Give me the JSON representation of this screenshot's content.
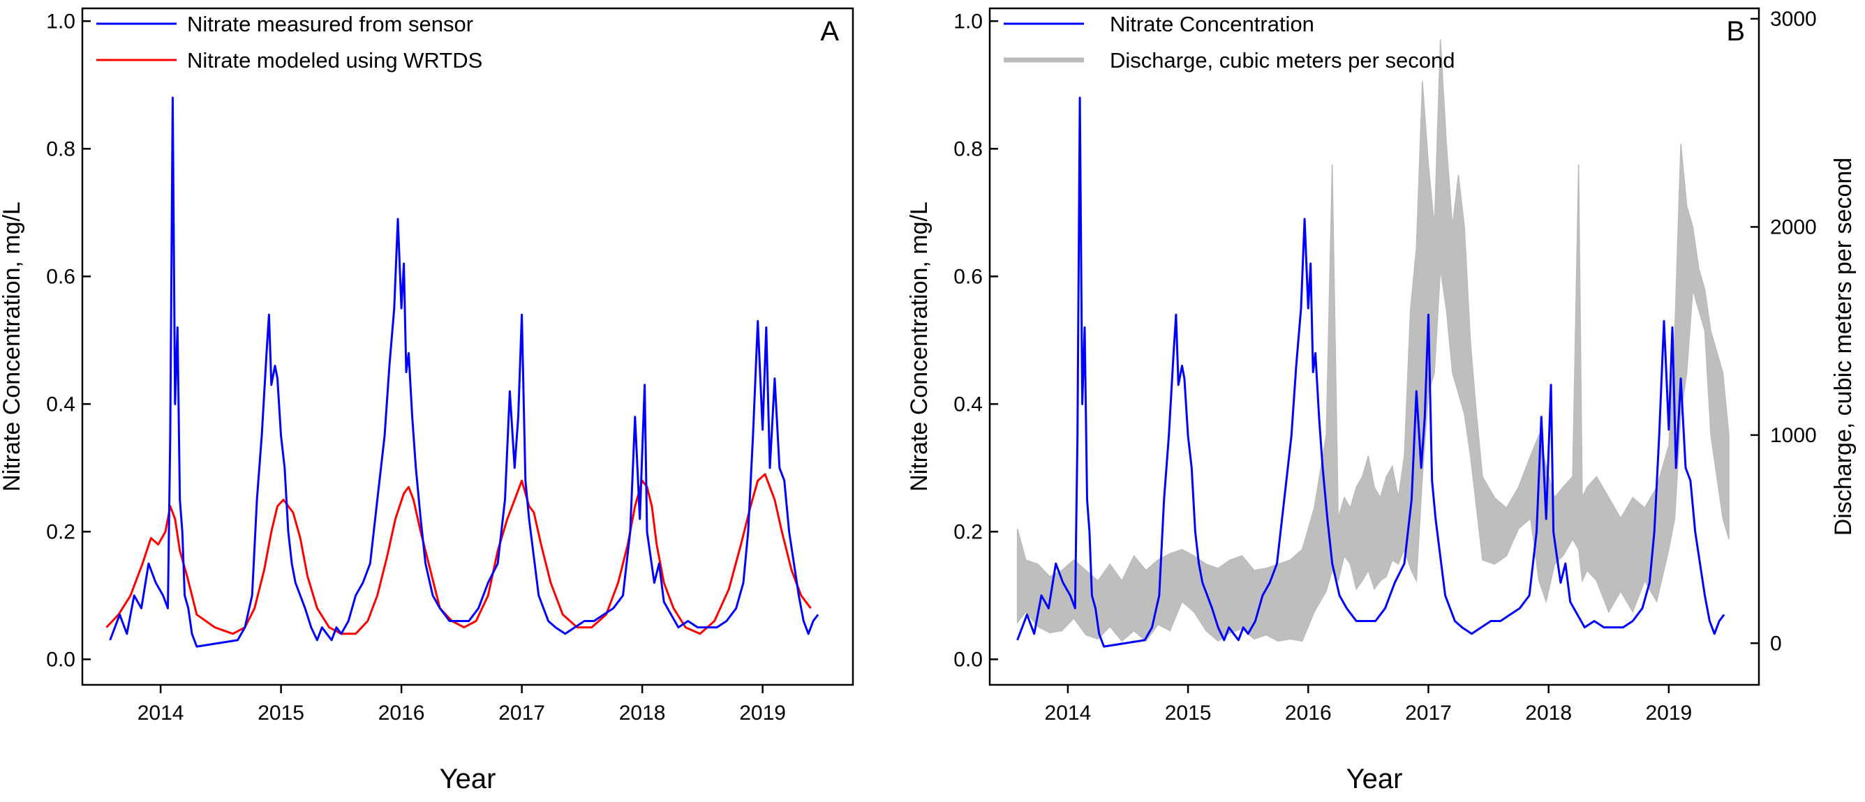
{
  "chart_data": [
    {
      "panel": "A",
      "type": "line",
      "xlabel": "Year",
      "ylabel": "Nitrate Concentration, mg/L",
      "xlim": [
        2013.35,
        2019.75
      ],
      "ylim": [
        -0.04,
        1.02
      ],
      "x_ticks": [
        2014,
        2015,
        2016,
        2017,
        2018,
        2019
      ],
      "x_tick_labels": [
        "2014",
        "2015",
        "2016",
        "2017",
        "2018",
        "2019"
      ],
      "y_ticks": [
        0.0,
        0.2,
        0.4,
        0.6,
        0.8,
        1.0
      ],
      "y_tick_labels": [
        "0.0",
        "0.2",
        "0.4",
        "0.6",
        "0.8",
        "1.0"
      ],
      "legend_position": "top-left",
      "grid": false,
      "series": [
        {
          "name": "Nitrate measured from sensor",
          "color": "#0000ff",
          "x": [
            2013.58,
            2013.62,
            2013.66,
            2013.72,
            2013.78,
            2013.84,
            2013.9,
            2013.96,
            2014.02,
            2014.06,
            2014.08,
            2014.1,
            2014.12,
            2014.14,
            2014.16,
            2014.18,
            2014.2,
            2014.23,
            2014.26,
            2014.3,
            2014.64,
            2014.7,
            2014.76,
            2014.8,
            2014.84,
            2014.88,
            2014.9,
            2014.92,
            2014.95,
            2014.97,
            2015.0,
            2015.03,
            2015.06,
            2015.09,
            2015.12,
            2015.16,
            2015.2,
            2015.25,
            2015.3,
            2015.34,
            2015.38,
            2015.42,
            2015.46,
            2015.5,
            2015.56,
            2015.62,
            2015.68,
            2015.74,
            2015.8,
            2015.86,
            2015.9,
            2015.94,
            2015.97,
            2016.0,
            2016.02,
            2016.04,
            2016.06,
            2016.09,
            2016.12,
            2016.16,
            2016.2,
            2016.26,
            2016.32,
            2016.4,
            2016.48,
            2016.56,
            2016.64,
            2016.72,
            2016.8,
            2016.86,
            2016.9,
            2016.94,
            2016.97,
            2017.0,
            2017.03,
            2017.06,
            2017.1,
            2017.14,
            2017.18,
            2017.22,
            2017.28,
            2017.36,
            2017.44,
            2017.52,
            2017.6,
            2017.68,
            2017.76,
            2017.84,
            2017.9,
            2017.94,
            2017.98,
            2018.02,
            2018.04,
            2018.07,
            2018.1,
            2018.14,
            2018.18,
            2018.24,
            2018.3,
            2018.38,
            2018.46,
            2018.54,
            2018.62,
            2018.7,
            2018.78,
            2018.84,
            2018.88,
            2018.92,
            2018.96,
            2019.0,
            2019.03,
            2019.06,
            2019.1,
            2019.14,
            2019.18,
            2019.22,
            2019.26,
            2019.3,
            2019.34,
            2019.38,
            2019.42,
            2019.46
          ],
          "values": [
            0.03,
            0.05,
            0.07,
            0.04,
            0.1,
            0.08,
            0.15,
            0.12,
            0.1,
            0.08,
            0.35,
            0.88,
            0.4,
            0.52,
            0.25,
            0.2,
            0.1,
            0.08,
            0.04,
            0.02,
            0.03,
            0.05,
            0.1,
            0.25,
            0.35,
            0.48,
            0.54,
            0.43,
            0.46,
            0.44,
            0.35,
            0.3,
            0.2,
            0.15,
            0.12,
            0.1,
            0.08,
            0.05,
            0.03,
            0.05,
            0.04,
            0.03,
            0.05,
            0.04,
            0.06,
            0.1,
            0.12,
            0.15,
            0.25,
            0.35,
            0.46,
            0.55,
            0.69,
            0.55,
            0.62,
            0.45,
            0.48,
            0.38,
            0.3,
            0.22,
            0.15,
            0.1,
            0.08,
            0.06,
            0.06,
            0.06,
            0.08,
            0.12,
            0.15,
            0.25,
            0.42,
            0.3,
            0.38,
            0.54,
            0.28,
            0.22,
            0.16,
            0.1,
            0.08,
            0.06,
            0.05,
            0.04,
            0.05,
            0.06,
            0.06,
            0.07,
            0.08,
            0.1,
            0.2,
            0.38,
            0.22,
            0.43,
            0.2,
            0.16,
            0.12,
            0.15,
            0.09,
            0.07,
            0.05,
            0.06,
            0.05,
            0.05,
            0.05,
            0.06,
            0.08,
            0.12,
            0.2,
            0.35,
            0.53,
            0.36,
            0.52,
            0.3,
            0.44,
            0.3,
            0.28,
            0.2,
            0.15,
            0.1,
            0.06,
            0.04,
            0.06,
            0.07
          ]
        },
        {
          "name": "Nitrate modeled using WRTDS",
          "color": "#ff0000",
          "x": [
            2013.55,
            2013.65,
            2013.75,
            2013.85,
            2013.92,
            2013.98,
            2014.04,
            2014.08,
            2014.12,
            2014.16,
            2014.22,
            2014.3,
            2014.45,
            2014.6,
            2014.7,
            2014.78,
            2014.86,
            2014.92,
            2014.97,
            2015.02,
            2015.06,
            2015.1,
            2015.16,
            2015.22,
            2015.3,
            2015.4,
            2015.5,
            2015.62,
            2015.72,
            2015.8,
            2015.88,
            2015.95,
            2016.02,
            2016.06,
            2016.1,
            2016.16,
            2016.24,
            2016.32,
            2016.42,
            2016.52,
            2016.62,
            2016.72,
            2016.8,
            2016.88,
            2016.94,
            2017.0,
            2017.06,
            2017.1,
            2017.16,
            2017.24,
            2017.34,
            2017.46,
            2017.58,
            2017.7,
            2017.8,
            2017.88,
            2017.94,
            2018.0,
            2018.04,
            2018.08,
            2018.12,
            2018.18,
            2018.26,
            2018.36,
            2018.48,
            2018.6,
            2018.72,
            2018.82,
            2018.9,
            2018.96,
            2019.02,
            2019.06,
            2019.1,
            2019.16,
            2019.24,
            2019.32,
            2019.4
          ],
          "values": [
            0.05,
            0.07,
            0.1,
            0.15,
            0.19,
            0.18,
            0.2,
            0.24,
            0.22,
            0.17,
            0.13,
            0.07,
            0.05,
            0.04,
            0.05,
            0.08,
            0.14,
            0.2,
            0.24,
            0.25,
            0.24,
            0.23,
            0.19,
            0.13,
            0.08,
            0.05,
            0.04,
            0.04,
            0.06,
            0.1,
            0.16,
            0.22,
            0.26,
            0.27,
            0.25,
            0.2,
            0.14,
            0.08,
            0.06,
            0.05,
            0.06,
            0.1,
            0.17,
            0.22,
            0.25,
            0.28,
            0.24,
            0.23,
            0.18,
            0.12,
            0.07,
            0.05,
            0.05,
            0.07,
            0.12,
            0.18,
            0.24,
            0.28,
            0.27,
            0.24,
            0.18,
            0.12,
            0.08,
            0.05,
            0.04,
            0.06,
            0.11,
            0.18,
            0.24,
            0.28,
            0.29,
            0.27,
            0.25,
            0.2,
            0.14,
            0.1,
            0.08
          ]
        }
      ],
      "panel_label": "A"
    },
    {
      "panel": "B",
      "type": "line",
      "xlabel": "Year",
      "ylabel": "Nitrate Concentration, mg/L",
      "y2label": "Discharge, cubic meters per second",
      "xlim": [
        2013.35,
        2019.75
      ],
      "ylim": [
        -0.04,
        1.02
      ],
      "y2lim": [
        -200,
        3050
      ],
      "x_ticks": [
        2014,
        2015,
        2016,
        2017,
        2018,
        2019
      ],
      "x_tick_labels": [
        "2014",
        "2015",
        "2016",
        "2017",
        "2018",
        "2019"
      ],
      "y_ticks": [
        0.0,
        0.2,
        0.4,
        0.6,
        0.8,
        1.0
      ],
      "y_tick_labels": [
        "0.0",
        "0.2",
        "0.4",
        "0.6",
        "0.8",
        "1.0"
      ],
      "y2_ticks": [
        0,
        1000,
        2000,
        3000
      ],
      "y2_tick_labels": [
        "0",
        "1000",
        "2000",
        "3000"
      ],
      "legend_position": "top-left",
      "grid": false,
      "series": [
        {
          "name": "Nitrate Concentration",
          "color": "#0000ff",
          "axis": "left",
          "x": [
            2013.58,
            2013.62,
            2013.66,
            2013.72,
            2013.78,
            2013.84,
            2013.9,
            2013.96,
            2014.02,
            2014.06,
            2014.08,
            2014.1,
            2014.12,
            2014.14,
            2014.16,
            2014.18,
            2014.2,
            2014.23,
            2014.26,
            2014.3,
            2014.64,
            2014.7,
            2014.76,
            2014.8,
            2014.84,
            2014.88,
            2014.9,
            2014.92,
            2014.95,
            2014.97,
            2015.0,
            2015.03,
            2015.06,
            2015.09,
            2015.12,
            2015.16,
            2015.2,
            2015.25,
            2015.3,
            2015.34,
            2015.38,
            2015.42,
            2015.46,
            2015.5,
            2015.56,
            2015.62,
            2015.68,
            2015.74,
            2015.8,
            2015.86,
            2015.9,
            2015.94,
            2015.97,
            2016.0,
            2016.02,
            2016.04,
            2016.06,
            2016.09,
            2016.12,
            2016.16,
            2016.2,
            2016.26,
            2016.32,
            2016.4,
            2016.48,
            2016.56,
            2016.64,
            2016.72,
            2016.8,
            2016.86,
            2016.9,
            2016.94,
            2016.97,
            2017.0,
            2017.03,
            2017.06,
            2017.1,
            2017.14,
            2017.18,
            2017.22,
            2017.28,
            2017.36,
            2017.44,
            2017.52,
            2017.6,
            2017.68,
            2017.76,
            2017.84,
            2017.9,
            2017.94,
            2017.98,
            2018.02,
            2018.04,
            2018.07,
            2018.1,
            2018.14,
            2018.18,
            2018.24,
            2018.3,
            2018.38,
            2018.46,
            2018.54,
            2018.62,
            2018.7,
            2018.78,
            2018.84,
            2018.88,
            2018.92,
            2018.96,
            2019.0,
            2019.03,
            2019.06,
            2019.1,
            2019.14,
            2019.18,
            2019.22,
            2019.26,
            2019.3,
            2019.34,
            2019.38,
            2019.42,
            2019.46
          ],
          "values": [
            0.03,
            0.05,
            0.07,
            0.04,
            0.1,
            0.08,
            0.15,
            0.12,
            0.1,
            0.08,
            0.35,
            0.88,
            0.4,
            0.52,
            0.25,
            0.2,
            0.1,
            0.08,
            0.04,
            0.02,
            0.03,
            0.05,
            0.1,
            0.25,
            0.35,
            0.48,
            0.54,
            0.43,
            0.46,
            0.44,
            0.35,
            0.3,
            0.2,
            0.15,
            0.12,
            0.1,
            0.08,
            0.05,
            0.03,
            0.05,
            0.04,
            0.03,
            0.05,
            0.04,
            0.06,
            0.1,
            0.12,
            0.15,
            0.25,
            0.35,
            0.46,
            0.55,
            0.69,
            0.55,
            0.62,
            0.45,
            0.48,
            0.38,
            0.3,
            0.22,
            0.15,
            0.1,
            0.08,
            0.06,
            0.06,
            0.06,
            0.08,
            0.12,
            0.15,
            0.25,
            0.42,
            0.3,
            0.38,
            0.54,
            0.28,
            0.22,
            0.16,
            0.1,
            0.08,
            0.06,
            0.05,
            0.04,
            0.05,
            0.06,
            0.06,
            0.07,
            0.08,
            0.1,
            0.2,
            0.38,
            0.22,
            0.43,
            0.2,
            0.16,
            0.12,
            0.15,
            0.09,
            0.07,
            0.05,
            0.06,
            0.05,
            0.05,
            0.05,
            0.06,
            0.08,
            0.12,
            0.2,
            0.35,
            0.53,
            0.36,
            0.52,
            0.3,
            0.44,
            0.3,
            0.28,
            0.2,
            0.15,
            0.1,
            0.06,
            0.04,
            0.06,
            0.07
          ]
        },
        {
          "name": "Discharge, cubic meters per second",
          "color": "#bbbbbb",
          "axis": "right",
          "x": [
            2013.58,
            2013.65,
            2013.75,
            2013.85,
            2013.95,
            2014.05,
            2014.15,
            2014.25,
            2014.35,
            2014.45,
            2014.55,
            2014.65,
            2014.75,
            2014.85,
            2014.95,
            2015.05,
            2015.15,
            2015.25,
            2015.35,
            2015.45,
            2015.55,
            2015.65,
            2015.75,
            2015.85,
            2015.95,
            2016.05,
            2016.15,
            2016.2,
            2016.25,
            2016.3,
            2016.35,
            2016.4,
            2016.45,
            2016.5,
            2016.55,
            2016.6,
            2016.65,
            2016.7,
            2016.75,
            2016.8,
            2016.85,
            2016.9,
            2016.95,
            2017.0,
            2017.05,
            2017.1,
            2017.15,
            2017.2,
            2017.25,
            2017.3,
            2017.35,
            2017.4,
            2017.45,
            2017.55,
            2017.65,
            2017.75,
            2017.85,
            2017.92,
            2017.98,
            2018.05,
            2018.12,
            2018.2,
            2018.25,
            2018.28,
            2018.32,
            2018.4,
            2018.5,
            2018.6,
            2018.7,
            2018.8,
            2018.9,
            2019.0,
            2019.05,
            2019.1,
            2019.15,
            2019.2,
            2019.25,
            2019.3,
            2019.35,
            2019.4,
            2019.45,
            2019.5
          ],
          "low": [
            100,
            150,
            80,
            50,
            60,
            120,
            40,
            20,
            80,
            10,
            60,
            10,
            90,
            60,
            200,
            150,
            60,
            10,
            50,
            70,
            20,
            40,
            10,
            20,
            10,
            150,
            250,
            350,
            300,
            420,
            380,
            260,
            300,
            350,
            260,
            300,
            320,
            400,
            380,
            450,
            360,
            300,
            800,
            1200,
            1300,
            1800,
            1600,
            1300,
            1200,
            1100,
            900,
            650,
            400,
            380,
            420,
            550,
            600,
            300,
            200,
            380,
            420,
            500,
            450,
            300,
            350,
            300,
            150,
            250,
            150,
            300,
            200,
            450,
            600,
            1100,
            1300,
            1700,
            1600,
            1500,
            1000,
            800,
            600,
            500
          ],
          "high": [
            550,
            400,
            380,
            320,
            350,
            400,
            350,
            300,
            380,
            300,
            420,
            350,
            400,
            430,
            450,
            420,
            380,
            360,
            400,
            420,
            350,
            360,
            380,
            400,
            450,
            650,
            1000,
            2300,
            600,
            700,
            650,
            750,
            800,
            900,
            750,
            700,
            800,
            850,
            700,
            900,
            1600,
            1900,
            2700,
            2300,
            2000,
            2900,
            2400,
            2000,
            2250,
            2000,
            1450,
            1100,
            800,
            700,
            650,
            750,
            900,
            1000,
            850,
            700,
            750,
            800,
            2300,
            700,
            750,
            800,
            700,
            600,
            700,
            650,
            750,
            950,
            1500,
            2400,
            2100,
            2000,
            1800,
            1700,
            1500,
            1400,
            1300,
            1000
          ]
        }
      ],
      "panel_label": "B"
    }
  ]
}
